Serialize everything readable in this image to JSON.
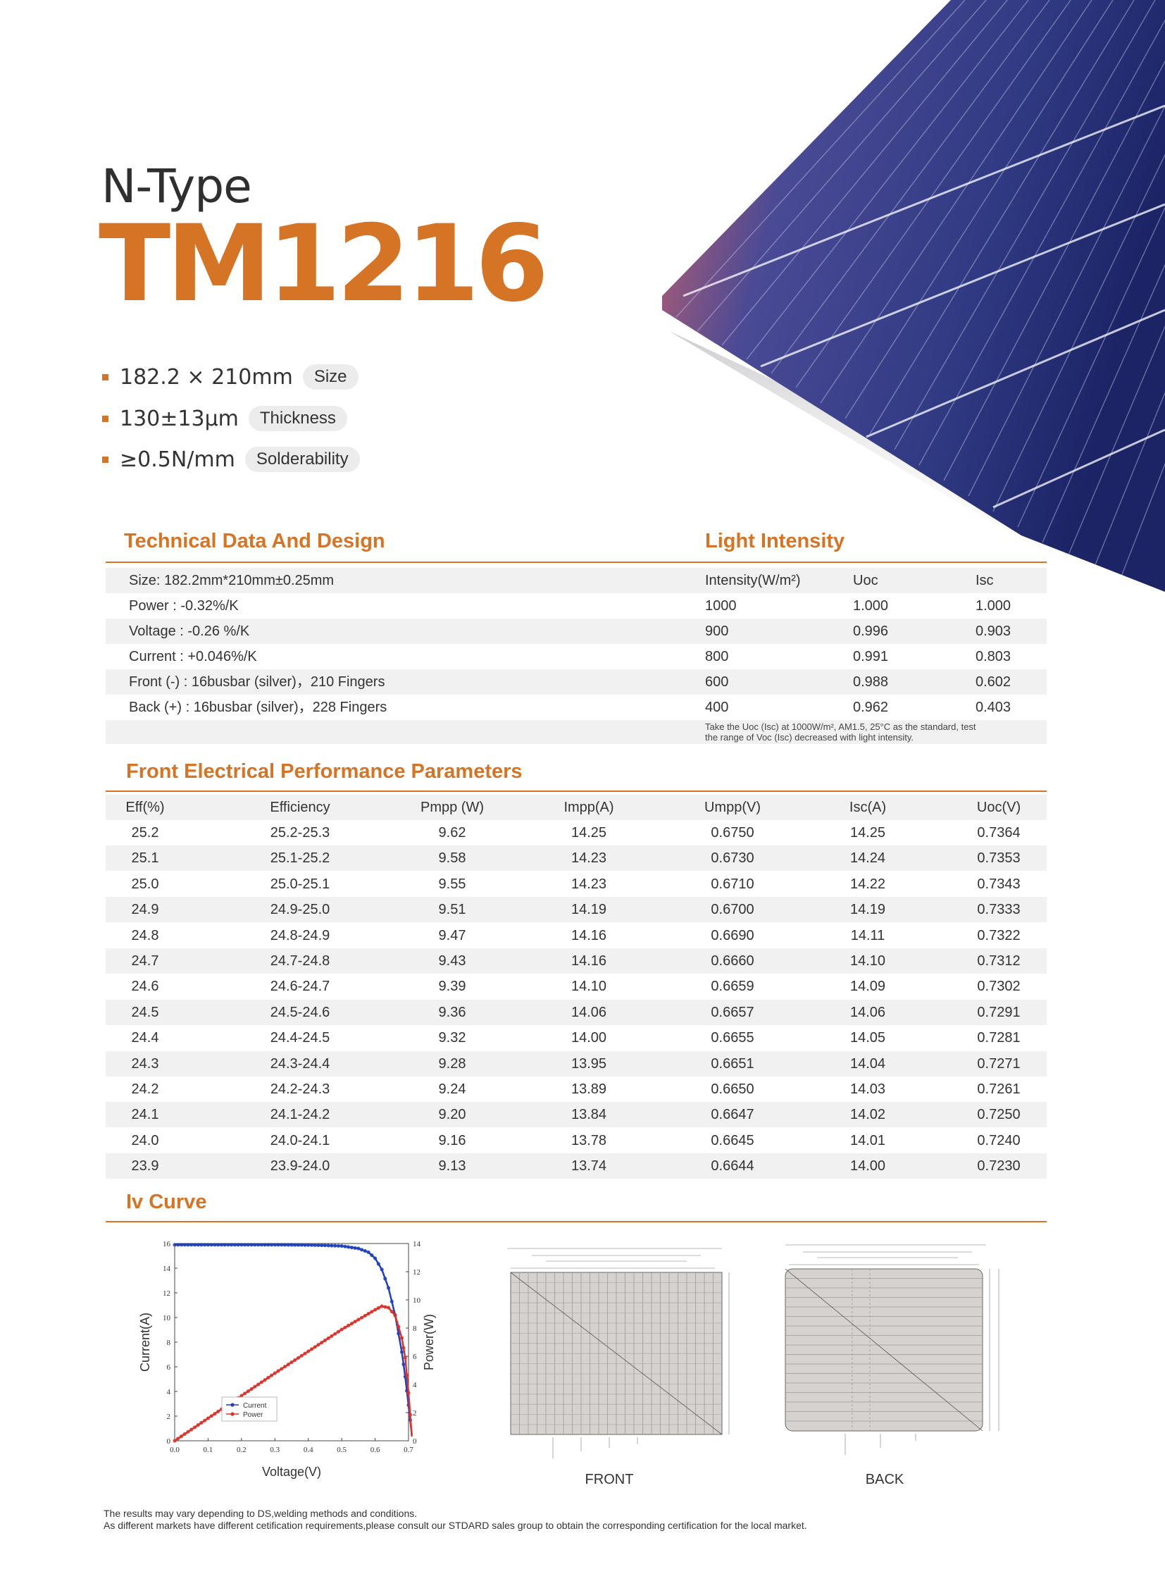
{
  "hero": {
    "subtitle": "N-Type",
    "model": "TM1216",
    "features": [
      {
        "value": "182.2 × 210mm",
        "label": "Size"
      },
      {
        "value": "130±13μm",
        "label": "Thickness"
      },
      {
        "value": "≥0.5N/mm",
        "label": "Solderability"
      }
    ]
  },
  "technical": {
    "title": "Technical Data And Design",
    "rows": [
      "Size:  182.2mm*210mm±0.25mm",
      "Power :   -0.32%/K",
      "Voltage :   -0.26 %/K",
      "Current :   +0.046%/K",
      "Front (-) :    16busbar (silver)，210 Fingers",
      "Back (+) :    16busbar (silver)，228 Fingers"
    ]
  },
  "light": {
    "title": "Light Intensity",
    "headers": [
      "Intensity(W/m²)",
      "Uoc",
      "Isc"
    ],
    "rows": [
      [
        "1000",
        "1.000",
        "1.000"
      ],
      [
        "900",
        "0.996",
        "0.903"
      ],
      [
        "800",
        "0.991",
        "0.803"
      ],
      [
        "600",
        "0.988",
        "0.602"
      ],
      [
        "400",
        "0.962",
        "0.403"
      ]
    ],
    "note_line1": "Take the Uoc (Isc) at 1000W/m², AM1.5, 25°C as the standard, test",
    "note_line2": "the range of Voc (Isc) decreased with light intensity."
  },
  "electrical": {
    "title": "Front Electrical Performance Parameters",
    "headers": [
      "Eff(%)",
      "Efficiency",
      "Pmpp (W)",
      "Impp(A)",
      "Umpp(V)",
      "Isc(A)",
      "Uoc(V)"
    ],
    "rows": [
      [
        "25.2",
        "25.2-25.3",
        "9.62",
        "14.25",
        "0.6750",
        "14.25",
        "0.7364"
      ],
      [
        "25.1",
        "25.1-25.2",
        "9.58",
        "14.23",
        "0.6730",
        "14.24",
        "0.7353"
      ],
      [
        "25.0",
        "25.0-25.1",
        "9.55",
        "14.23",
        "0.6710",
        "14.22",
        "0.7343"
      ],
      [
        "24.9",
        "24.9-25.0",
        "9.51",
        "14.19",
        "0.6700",
        "14.19",
        "0.7333"
      ],
      [
        "24.8",
        "24.8-24.9",
        "9.47",
        "14.16",
        "0.6690",
        "14.11",
        "0.7322"
      ],
      [
        "24.7",
        "24.7-24.8",
        "9.43",
        "14.16",
        "0.6660",
        "14.10",
        "0.7312"
      ],
      [
        "24.6",
        "24.6-24.7",
        "9.39",
        "14.10",
        "0.6659",
        "14.09",
        "0.7302"
      ],
      [
        "24.5",
        "24.5-24.6",
        "9.36",
        "14.06",
        "0.6657",
        "14.06",
        "0.7291"
      ],
      [
        "24.4",
        "24.4-24.5",
        "9.32",
        "14.00",
        "0.6655",
        "14.05",
        "0.7281"
      ],
      [
        "24.3",
        "24.3-24.4",
        "9.28",
        "13.95",
        "0.6651",
        "14.04",
        "0.7271"
      ],
      [
        "24.2",
        "24.2-24.3",
        "9.24",
        "13.89",
        "0.6650",
        "14.03",
        "0.7261"
      ],
      [
        "24.1",
        "24.1-24.2",
        "9.20",
        "13.84",
        "0.6647",
        "14.02",
        "0.7250"
      ],
      [
        "24.0",
        "24.0-24.1",
        "9.16",
        "13.78",
        "0.6645",
        "14.01",
        "0.7240"
      ],
      [
        "23.9",
        "23.9-24.0",
        "9.13",
        "13.74",
        "0.6644",
        "14.00",
        "0.7230"
      ]
    ]
  },
  "iv": {
    "title": "Iv Curve"
  },
  "chart_data": {
    "type": "line",
    "title": "",
    "xlabel": "Voltage(V)",
    "ylabel": "Current(A)",
    "y2label": "Power(W)",
    "xlim": [
      0.0,
      0.7
    ],
    "ylim": [
      0,
      16
    ],
    "y2lim": [
      0,
      14
    ],
    "xticks": [
      "0.0",
      "0.1",
      "0.2",
      "0.3",
      "0.4",
      "0.5",
      "0.6",
      "0.7"
    ],
    "yticks": [
      "0",
      "2",
      "4",
      "6",
      "8",
      "10",
      "12",
      "14",
      "16"
    ],
    "y2ticks": [
      "0",
      "2",
      "4",
      "6",
      "8",
      "10",
      "12",
      "14"
    ],
    "legend_position": "lower-left",
    "series": [
      {
        "name": "Current",
        "axis": "left",
        "color": "#1f3fbf",
        "points": [
          [
            0.0,
            15.9
          ],
          [
            0.1,
            15.9
          ],
          [
            0.2,
            15.9
          ],
          [
            0.3,
            15.9
          ],
          [
            0.4,
            15.88
          ],
          [
            0.45,
            15.85
          ],
          [
            0.5,
            15.8
          ],
          [
            0.55,
            15.6
          ],
          [
            0.58,
            15.3
          ],
          [
            0.6,
            14.8
          ],
          [
            0.62,
            13.9
          ],
          [
            0.64,
            12.4
          ],
          [
            0.66,
            10.2
          ],
          [
            0.68,
            7.2
          ],
          [
            0.69,
            5.2
          ],
          [
            0.7,
            2.9
          ],
          [
            0.71,
            0.5
          ]
        ]
      },
      {
        "name": "Power",
        "axis": "right",
        "color": "#d9332b",
        "points": [
          [
            0.0,
            0.0
          ],
          [
            0.1,
            1.6
          ],
          [
            0.2,
            3.2
          ],
          [
            0.3,
            4.8
          ],
          [
            0.4,
            6.35
          ],
          [
            0.5,
            7.9
          ],
          [
            0.55,
            8.6
          ],
          [
            0.6,
            9.3
          ],
          [
            0.62,
            9.55
          ],
          [
            0.64,
            9.45
          ],
          [
            0.66,
            8.9
          ],
          [
            0.68,
            7.3
          ],
          [
            0.69,
            5.9
          ],
          [
            0.7,
            3.4
          ],
          [
            0.71,
            0.3
          ]
        ]
      }
    ]
  },
  "diagrams": {
    "front_label": "FRONT",
    "back_label": "BACK"
  },
  "footer": {
    "line1": "The results may vary depending to DS,welding methods and conditions.",
    "line2": "As different markets have different cetification requirements,please consult our STDARD sales group to obtain the corresponding certification for the local market."
  }
}
